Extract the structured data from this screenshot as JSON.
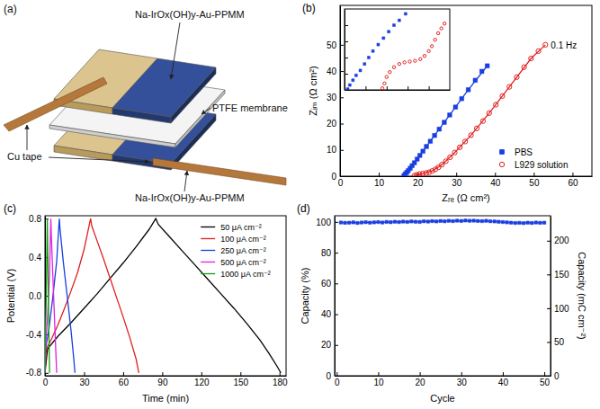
{
  "diagram": {
    "panel_label": "(a)",
    "labels": {
      "top_layer": "Na-IrOx(OH)y-Au-PPMM",
      "membrane": "PTFE membrane",
      "tape": "Cu tape",
      "bottom_layer": "Na-IrOx(OH)y-Au-PPMM"
    }
  },
  "chart_data": [
    {
      "type": "scatter",
      "panel_label": "(b)",
      "x_label": "Zᵣₑ (Ω cm²)",
      "y_label": "Zᵢₘ (Ω cm²)",
      "xlim": [
        0,
        65
      ],
      "ylim": [
        0,
        65
      ],
      "xticks": [
        0,
        10,
        20,
        30,
        40,
        50,
        60
      ],
      "yticks": [
        0,
        10,
        20,
        30,
        40,
        50
      ],
      "legend": "lower right",
      "series": [
        {
          "name": "PBS",
          "color": "#1a3fe0",
          "marker": "square",
          "x": [
            16.5,
            16.8,
            17.2,
            17.6,
            18.1,
            18.6,
            19.2,
            19.9,
            20.6,
            21.4,
            22.3,
            23.3,
            24.4,
            25.6,
            26.9,
            28.3,
            29.8,
            31.4,
            33.1,
            34.9,
            36.6,
            38.0
          ],
          "values": [
            0.2,
            0.8,
            1.4,
            2.1,
            3.0,
            4.0,
            5.1,
            6.5,
            7.9,
            9.5,
            11.3,
            13.3,
            15.5,
            17.9,
            20.5,
            23.3,
            26.3,
            29.5,
            32.9,
            36.5,
            39.9,
            42.0
          ]
        },
        {
          "name": "L929 solution",
          "color": "#e02020",
          "marker": "open-circle",
          "x": [
            19.2,
            19.8,
            20.5,
            21.3,
            22.2,
            23.0,
            23.8,
            24.6,
            25.4,
            26.3,
            27.3,
            28.4,
            29.6,
            30.9,
            32.3,
            33.8,
            35.3,
            36.9,
            38.5,
            40.2,
            41.9,
            43.7,
            45.6,
            47.5,
            49.3,
            51.2,
            53.0
          ],
          "values": [
            0.2,
            0.5,
            0.8,
            1.0,
            1.2,
            1.5,
            2.0,
            2.6,
            3.4,
            4.4,
            5.7,
            7.2,
            9.0,
            11.0,
            13.2,
            15.6,
            18.2,
            21.0,
            24.0,
            27.2,
            30.5,
            34.0,
            37.7,
            41.5,
            44.8,
            47.6,
            50.0
          ]
        },
        {
          "type": "line",
          "color": "#1a3fe0",
          "line_style": "solid",
          "x": [
            16.6,
            18.6,
            21.4,
            24.4,
            28.3,
            33.1,
            38.0
          ],
          "values": [
            0.3,
            4.0,
            9.5,
            15.5,
            23.3,
            32.9,
            42.0
          ]
        },
        {
          "type": "line",
          "color": "#e02020",
          "line_style": "solid",
          "x": [
            19.2,
            21.3,
            23.8,
            26.3,
            29.6,
            33.8,
            38.5,
            43.7,
            49.3,
            53.0
          ],
          "values": [
            0.2,
            1.0,
            2.0,
            4.4,
            9.0,
            15.6,
            24.0,
            34.0,
            44.8,
            50.0
          ]
        }
      ],
      "annotations": [
        {
          "text": "0.1 Hz",
          "x": 53.0,
          "y": 50.0
        }
      ]
    },
    {
      "type": "scatter",
      "tick_labels": false,
      "xlim": [
        16,
        26
      ],
      "ylim": [
        0,
        5
      ],
      "xticks": [
        18,
        20,
        22,
        24
      ],
      "yticks": [
        1,
        2,
        3,
        4
      ],
      "series": [
        {
          "color": "#1a3fe0",
          "marker": "square",
          "x": [
            16.3,
            16.5,
            16.8,
            17.1,
            17.5,
            17.9,
            18.3,
            18.7,
            19.2,
            19.7,
            20.2,
            20.7,
            21.2,
            21.8
          ],
          "values": [
            0.05,
            0.3,
            0.6,
            0.9,
            1.2,
            1.6,
            2.0,
            2.4,
            2.8,
            3.2,
            3.6,
            4.0,
            4.3,
            4.7
          ]
        },
        {
          "color": "#e02020",
          "marker": "open-circle",
          "x": [
            19.6,
            19.8,
            20.0,
            20.3,
            20.7,
            21.2,
            21.7,
            22.2,
            22.7,
            23.2,
            23.6,
            24.0,
            24.3,
            24.6,
            24.9,
            25.2,
            25.5
          ],
          "values": [
            0.1,
            0.4,
            0.8,
            1.1,
            1.4,
            1.6,
            1.7,
            1.75,
            1.8,
            1.9,
            2.1,
            2.4,
            2.7,
            3.1,
            3.5,
            3.8,
            4.1
          ]
        }
      ]
    },
    {
      "type": "line",
      "panel_label": "(c)",
      "x_label": "Time (min)",
      "y_label": "Potential (V)",
      "xlim": [
        0,
        185
      ],
      "ylim": [
        -0.83,
        0.83
      ],
      "xticks": [
        0,
        30,
        60,
        90,
        120,
        150,
        180
      ],
      "yticks": [
        -0.8,
        -0.4,
        {
          "value": 0,
          "label": "0.0"
        },
        0.4,
        0.8
      ],
      "legend": "upper right",
      "series": [
        {
          "name": "50 μA cm⁻²",
          "color": "#000000",
          "x": [
            0,
            2,
            10,
            20,
            30,
            40,
            50,
            60,
            70,
            80,
            85,
            87,
            95,
            105,
            115,
            125,
            135,
            145,
            155,
            165,
            172,
            178,
            181
          ],
          "values": [
            -0.8,
            -0.55,
            -0.42,
            -0.28,
            -0.13,
            0.02,
            0.18,
            0.34,
            0.51,
            0.69,
            0.8,
            0.74,
            0.62,
            0.47,
            0.32,
            0.17,
            0.02,
            -0.13,
            -0.29,
            -0.46,
            -0.6,
            -0.73,
            -0.8
          ]
        },
        {
          "name": "100 μA cm⁻²",
          "color": "#e02020",
          "x": [
            0,
            1,
            5,
            10,
            15,
            20,
            25,
            30,
            35,
            36,
            40,
            45,
            50,
            55,
            60,
            65,
            70,
            72
          ],
          "values": [
            -0.8,
            -0.55,
            -0.45,
            -0.3,
            -0.13,
            0.05,
            0.24,
            0.48,
            0.8,
            0.72,
            0.57,
            0.38,
            0.18,
            -0.02,
            -0.22,
            -0.43,
            -0.66,
            -0.8
          ]
        },
        {
          "name": "250 μA cm⁻²",
          "color": "#1a3fe0",
          "x": [
            0,
            0.5,
            3,
            6,
            9,
            11,
            11.5,
            14,
            17,
            20,
            22,
            23
          ],
          "values": [
            -0.8,
            -0.55,
            -0.35,
            -0.02,
            0.36,
            0.8,
            0.7,
            0.36,
            0,
            -0.36,
            -0.64,
            -0.8
          ]
        },
        {
          "name": "500 μA cm⁻²",
          "color": "#e020e0",
          "x": [
            0,
            0.3,
            2,
            3.5,
            4.5,
            4.8,
            6,
            7.5,
            8.5,
            9
          ],
          "values": [
            -0.8,
            -0.55,
            -0.22,
            0.22,
            0.8,
            0.66,
            0.22,
            -0.3,
            -0.64,
            -0.8
          ]
        },
        {
          "name": "1000 μA cm⁻²",
          "color": "#10a010",
          "x": [
            0,
            0.2,
            1,
            1.8,
            2,
            2.8,
            3.5
          ],
          "values": [
            -0.8,
            -0.5,
            0,
            0.8,
            0.6,
            -0.2,
            -0.8
          ]
        }
      ]
    },
    {
      "type": "line",
      "panel_label": "(d)",
      "x_label": "Cycle",
      "y_label": "Capacity (%)",
      "y2_label": "Capacity (mC cm⁻²)",
      "xlim": [
        -0.5,
        51.5
      ],
      "ylim": [
        0,
        104
      ],
      "y2lim": [
        0,
        237
      ],
      "xticks": [
        0,
        10,
        20,
        30,
        40,
        50
      ],
      "yticks": [
        0,
        20,
        40,
        60,
        80,
        100
      ],
      "y2ticks": [
        0,
        50,
        100,
        150,
        200
      ],
      "series": [
        {
          "color": "#1a3fe0",
          "marker": "square",
          "line_style": "solid",
          "x": [
            1,
            2,
            3,
            4,
            5,
            6,
            7,
            8,
            9,
            10,
            11,
            12,
            13,
            14,
            15,
            16,
            17,
            18,
            19,
            20,
            21,
            22,
            23,
            24,
            25,
            26,
            27,
            28,
            29,
            30,
            31,
            32,
            33,
            34,
            35,
            36,
            37,
            38,
            39,
            40,
            41,
            42,
            43,
            44,
            45,
            46,
            47,
            48,
            49,
            50
          ],
          "values": [
            99.6,
            99.4,
            99.5,
            99.7,
            99.3,
            99.6,
            99.8,
            99.5,
            99.7,
            99.9,
            99.6,
            100.0,
            99.8,
            100.1,
            99.9,
            100.2,
            100.0,
            100.3,
            100.1,
            100.0,
            100.4,
            100.2,
            100.5,
            100.3,
            100.6,
            100.4,
            100.7,
            100.5,
            100.8,
            100.6,
            100.9,
            100.7,
            100.8,
            100.6,
            100.5,
            100.7,
            100.4,
            100.3,
            100.1,
            99.9,
            99.7,
            99.5,
            99.3,
            99.4,
            99.2,
            99.5,
            99.3,
            99.6,
            99.4,
            99.5
          ]
        }
      ]
    }
  ]
}
